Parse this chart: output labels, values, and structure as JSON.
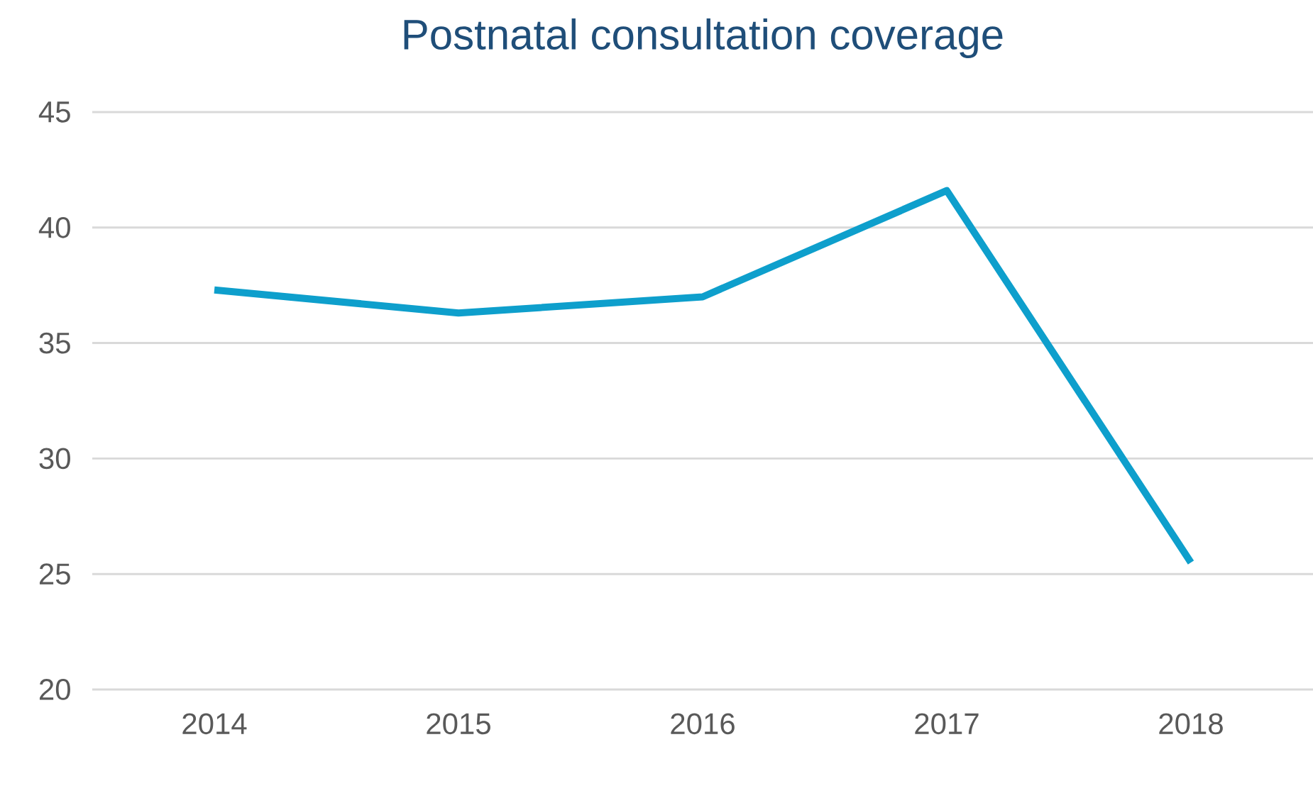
{
  "chart_data": {
    "type": "line",
    "title": "Postnatal consultation coverage",
    "categories": [
      "2014",
      "2015",
      "2016",
      "2017",
      "2018"
    ],
    "series": [
      {
        "color": "#0e9fcc",
        "values": [
          37.3,
          36.3,
          37.0,
          41.6,
          25.5
        ]
      }
    ],
    "ylim": [
      20,
      45
    ],
    "yticks": [
      20,
      25,
      30,
      35,
      40,
      45
    ],
    "grid": "y",
    "legend": false,
    "marker": "none",
    "line_style": "solid"
  }
}
